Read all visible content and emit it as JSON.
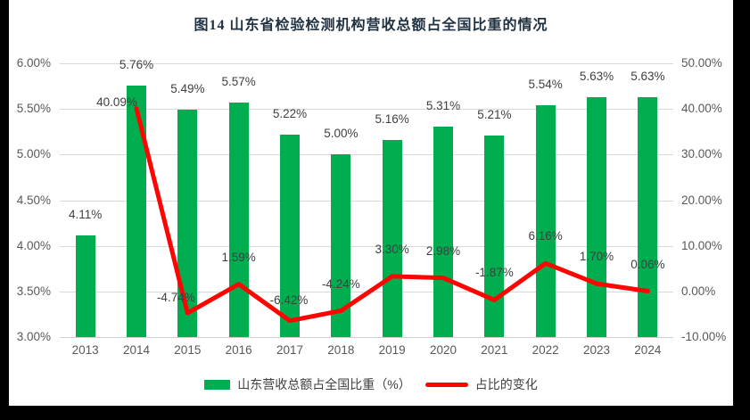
{
  "title": "图14  山东省检验检测机构营收总额占全国比重的情况",
  "chart_data": {
    "type": "combo-bar-line",
    "categories": [
      "2013",
      "2014",
      "2015",
      "2016",
      "2017",
      "2018",
      "2019",
      "2020",
      "2021",
      "2022",
      "2023",
      "2024"
    ],
    "series": [
      {
        "name": "山东营收总额占全国比重（%）",
        "type": "bar",
        "axis": "left",
        "values": [
          4.11,
          5.76,
          5.49,
          5.57,
          5.22,
          5.0,
          5.16,
          5.31,
          5.21,
          5.54,
          5.63,
          5.63
        ],
        "labels": [
          "4.11%",
          "5.76%",
          "5.49%",
          "5.57%",
          "5.22%",
          "5.00%",
          "5.16%",
          "5.31%",
          "5.21%",
          "5.54%",
          "5.63%",
          "5.63%"
        ]
      },
      {
        "name": "占比的变化",
        "type": "line",
        "axis": "right",
        "values": [
          null,
          40.09,
          -4.74,
          1.59,
          -6.42,
          -4.24,
          3.3,
          2.98,
          -1.87,
          6.16,
          1.7,
          0.06
        ],
        "labels": [
          null,
          "40.09%",
          "-4.74%",
          "1.59%",
          "-6.42%",
          "-4.24%",
          "3.30%",
          "2.98%",
          "-1.87%",
          "6.16%",
          "1.70%",
          "0.06%"
        ]
      }
    ],
    "left_axis": {
      "min": 3.0,
      "max": 6.0,
      "step": 0.5,
      "ticks": [
        "6.00%",
        "5.50%",
        "5.00%",
        "4.50%",
        "4.00%",
        "3.50%",
        "3.00%"
      ]
    },
    "right_axis": {
      "min": -10,
      "max": 50,
      "step": 10,
      "ticks": [
        "50.00%",
        "40.00%",
        "30.00%",
        "20.00%",
        "10.00%",
        "0.00%",
        "-10.00%"
      ]
    },
    "grid": true,
    "legend_position": "bottom"
  },
  "legend": {
    "bar_label": "山东营收总额占全国比重（%）",
    "line_label": "占比的变化"
  },
  "colors": {
    "bar": "#00ae50",
    "line": "#fd0602",
    "grid": "#d9d9d9",
    "axis_text": "#595959",
    "label_text": "#3f3f3f",
    "title_text": "#1f3140"
  }
}
